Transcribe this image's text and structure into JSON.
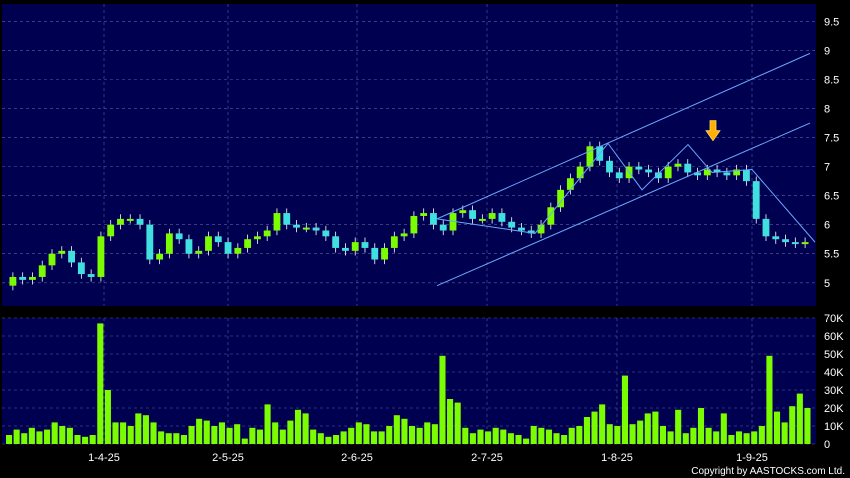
{
  "chart_data": [
    {
      "type": "candlestick",
      "panel": "price",
      "ylim": [
        4.6,
        9.8
      ],
      "yticks": [
        "9.5",
        "9",
        "8.5",
        "8",
        "7.5",
        "7",
        "6.5",
        "6",
        "5.5",
        "5"
      ],
      "colors": {
        "up": "#7CFC00",
        "down": "#40E0E0",
        "grid": "#5a5fa0",
        "background": "#000050",
        "trendline": "#6aa8ff",
        "annotation": "#ffb000"
      },
      "x_labels": [
        "1-4-25",
        "2-5-25",
        "2-6-25",
        "2-7-25",
        "1-8-25",
        "1-9-25"
      ],
      "close_series": [
        5.1,
        5.05,
        5.1,
        5.3,
        5.5,
        5.55,
        5.35,
        5.15,
        5.1,
        5.8,
        6.0,
        6.1,
        6.1,
        6.0,
        5.4,
        5.5,
        5.85,
        5.75,
        5.5,
        5.55,
        5.8,
        5.7,
        5.5,
        5.6,
        5.75,
        5.8,
        5.9,
        6.2,
        6.0,
        5.95,
        5.95,
        5.9,
        5.8,
        5.6,
        5.55,
        5.7,
        5.6,
        5.4,
        5.6,
        5.8,
        5.85,
        6.15,
        6.2,
        6.0,
        5.9,
        6.2,
        6.25,
        6.1,
        6.1,
        6.2,
        6.05,
        5.95,
        5.9,
        5.85,
        6.0,
        6.3,
        6.6,
        6.8,
        7.0,
        7.35,
        7.1,
        6.9,
        6.8,
        7.0,
        6.95,
        6.9,
        6.8,
        7.0,
        7.05,
        6.9,
        6.85,
        6.95,
        6.9,
        6.85,
        6.95,
        6.75,
        6.1,
        5.8,
        5.75,
        5.7,
        5.68,
        5.7
      ],
      "trendlines": [
        {
          "from": [
            "2-7-25",
            6.1
          ],
          "to": [
            "1-9-25",
            8.9
          ]
        },
        {
          "from": [
            "2-7-25",
            4.9
          ],
          "to": [
            "1-9-25",
            7.7
          ]
        },
        {
          "from": [
            "2-7-25",
            6.1
          ],
          "to": [
            "2-7-25",
            5.85
          ]
        },
        {
          "from": [
            "1-8-25",
            6.9
          ],
          "to": [
            "1-9-25",
            5.7
          ]
        }
      ],
      "annotation": {
        "type": "arrow",
        "x": "1-8-25",
        "y": 7.3
      }
    },
    {
      "type": "bar",
      "panel": "volume",
      "ylim": [
        0,
        70000
      ],
      "yticks": [
        "70K",
        "60K",
        "50K",
        "40K",
        "30K",
        "20K",
        "10K",
        "0"
      ],
      "color": "#7CFC00",
      "values": [
        5000,
        8000,
        6000,
        9000,
        7000,
        8000,
        12000,
        10000,
        9000,
        5000,
        4000,
        5000,
        67000,
        30000,
        12000,
        12000,
        10000,
        17000,
        16000,
        12000,
        7000,
        6000,
        6000,
        5000,
        10000,
        14000,
        13000,
        10000,
        12000,
        9000,
        11000,
        3000,
        9000,
        8000,
        22000,
        12000,
        8000,
        13000,
        19000,
        17000,
        8000,
        6000,
        4000,
        5000,
        7000,
        9000,
        12000,
        11000,
        7000,
        7000,
        10000,
        16000,
        14000,
        10000,
        9000,
        12000,
        11000,
        49000,
        25000,
        23000,
        9000,
        6000,
        8000,
        7000,
        9000,
        8000,
        6000,
        5000,
        3000,
        10000,
        9000,
        8000,
        6000,
        5000,
        9000,
        10000,
        15000,
        18000,
        22000,
        11000,
        10000,
        38000,
        11000,
        13000,
        17000,
        18000,
        10000,
        7000,
        19000,
        6000,
        9000,
        20000,
        9000,
        7000,
        17000,
        5000,
        7000,
        6000,
        7000,
        10000,
        49000,
        18000,
        12000,
        21000,
        28000,
        20000
      ]
    }
  ],
  "footer": {
    "copyright": "Copyright by AASTOCKS.com Ltd."
  }
}
